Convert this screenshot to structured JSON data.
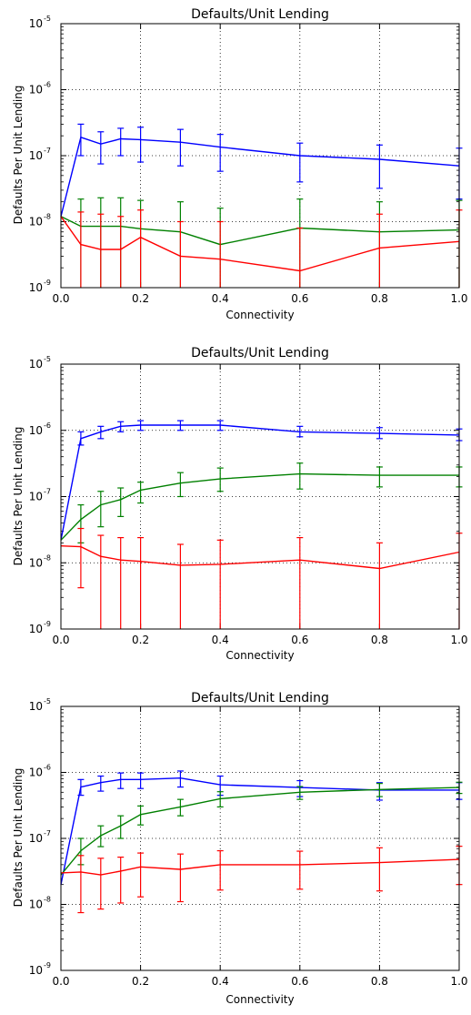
{
  "chart_data": [
    {
      "type": "line",
      "title": "Defaults/Unit Lending",
      "xlabel": "Connectivity",
      "ylabel": "Defaults Per Unit Lending",
      "yscale": "log",
      "xlim": [
        0.0,
        1.0
      ],
      "ylim": [
        1e-09,
        1e-05
      ],
      "grid": true,
      "x": [
        0.0,
        0.05,
        0.1,
        0.15,
        0.2,
        0.3,
        0.4,
        0.6,
        0.8,
        1.0
      ],
      "xticks": [
        "0.0",
        "0.2",
        "0.4",
        "0.6",
        "0.8",
        "1.0"
      ],
      "yticks": [
        "-9",
        "-8",
        "-7",
        "-6",
        "-5"
      ],
      "series": [
        {
          "color": "#0000ff",
          "values": [
            1.2e-08,
            1.9e-07,
            1.5e-07,
            1.8e-07,
            1.75e-07,
            1.6e-07,
            1.35e-07,
            1e-07,
            8.8e-08,
            7e-08
          ],
          "err_low": [
            1.2e-08,
            1e-07,
            7.5e-08,
            1e-07,
            8e-08,
            7e-08,
            5.8e-08,
            4e-08,
            3.2e-08,
            2.2e-08
          ],
          "err_high": [
            1.2e-08,
            3e-07,
            2.3e-07,
            2.6e-07,
            2.7e-07,
            2.5e-07,
            2.1e-07,
            1.55e-07,
            1.45e-07,
            1.3e-07
          ]
        },
        {
          "color": "#008000",
          "values": [
            1.2e-08,
            8.5e-09,
            8.5e-09,
            8.5e-09,
            7.8e-09,
            7e-09,
            4.5e-09,
            8e-09,
            7e-09,
            7.5e-09
          ],
          "err_low": [
            1.2e-08,
            1e-09,
            1e-09,
            1e-09,
            1e-09,
            1e-09,
            1e-09,
            1e-09,
            1e-09,
            1e-09
          ],
          "err_high": [
            1.2e-08,
            2.2e-08,
            2.3e-08,
            2.3e-08,
            2.1e-08,
            2e-08,
            1.6e-08,
            2.2e-08,
            2e-08,
            2.1e-08
          ]
        },
        {
          "color": "#ff0000",
          "values": [
            1.2e-08,
            4.5e-09,
            3.8e-09,
            3.8e-09,
            5.8e-09,
            3e-09,
            2.7e-09,
            1.8e-09,
            4e-09,
            5e-09
          ],
          "err_low": [
            1.2e-08,
            1e-09,
            1e-09,
            1e-09,
            1e-09,
            1e-09,
            1e-09,
            1e-09,
            1e-09,
            1e-09
          ],
          "err_high": [
            1.2e-08,
            1.4e-08,
            1.3e-08,
            1.2e-08,
            1.5e-08,
            1e-08,
            1e-08,
            8e-09,
            1.3e-08,
            1.5e-08
          ]
        }
      ]
    },
    {
      "type": "line",
      "title": "Defaults/Unit Lending",
      "xlabel": "Connectivity",
      "ylabel": "Defaults Per Unit Lending",
      "yscale": "log",
      "xlim": [
        0.0,
        1.0
      ],
      "ylim": [
        1e-09,
        1e-05
      ],
      "grid": true,
      "x": [
        0.0,
        0.05,
        0.1,
        0.15,
        0.2,
        0.3,
        0.4,
        0.6,
        0.8,
        1.0
      ],
      "xticks": [
        "0.0",
        "0.2",
        "0.4",
        "0.6",
        "0.8",
        "1.0"
      ],
      "yticks": [
        "-9",
        "-8",
        "-7",
        "-6",
        "-5"
      ],
      "series": [
        {
          "color": "#0000ff",
          "values": [
            2.2e-08,
            7.5e-07,
            9.5e-07,
            1.15e-06,
            1.2e-06,
            1.2e-06,
            1.2e-06,
            9.5e-07,
            9e-07,
            8.5e-07
          ],
          "err_low": [
            2.2e-08,
            6e-07,
            7.5e-07,
            9.5e-07,
            1e-06,
            1e-06,
            1e-06,
            8e-07,
            7.5e-07,
            7e-07
          ],
          "err_high": [
            2.2e-08,
            9.5e-07,
            1.15e-06,
            1.35e-06,
            1.4e-06,
            1.4e-06,
            1.4e-06,
            1.15e-06,
            1.1e-06,
            1.05e-06
          ]
        },
        {
          "color": "#008000",
          "values": [
            2.2e-08,
            4.5e-08,
            7.5e-08,
            9e-08,
            1.25e-07,
            1.6e-07,
            1.85e-07,
            2.2e-07,
            2.1e-07,
            2.1e-07
          ],
          "err_low": [
            2.2e-08,
            2e-08,
            3.5e-08,
            5e-08,
            8e-08,
            1e-07,
            1.2e-07,
            1.3e-07,
            1.4e-07,
            1.4e-07
          ],
          "err_high": [
            2.2e-08,
            7.5e-08,
            1.2e-07,
            1.35e-07,
            1.65e-07,
            2.3e-07,
            2.7e-07,
            3.2e-07,
            2.8e-07,
            2.8e-07
          ]
        },
        {
          "color": "#ff0000",
          "values": [
            1.8e-08,
            1.75e-08,
            1.25e-08,
            1.1e-08,
            1.05e-08,
            9.2e-09,
            9.5e-09,
            1.1e-08,
            8.2e-09,
            1.45e-08
          ],
          "err_low": [
            1.8e-08,
            4.2e-09,
            1e-09,
            1e-09,
            1e-09,
            1e-09,
            1e-09,
            1e-09,
            1e-09,
            1e-09
          ],
          "err_high": [
            1.8e-08,
            3.3e-08,
            2.6e-08,
            2.4e-08,
            2.4e-08,
            1.9e-08,
            2.2e-08,
            2.4e-08,
            2e-08,
            2.8e-08
          ]
        }
      ]
    },
    {
      "type": "line",
      "title": "Defaults/Unit Lending",
      "xlabel": "Connectivity",
      "ylabel": "Defaults Per Unit Lending",
      "yscale": "log",
      "xlim": [
        0.0,
        1.0
      ],
      "ylim": [
        1e-09,
        1e-05
      ],
      "grid": true,
      "x": [
        0.0,
        0.05,
        0.1,
        0.15,
        0.2,
        0.3,
        0.4,
        0.6,
        0.8,
        1.0
      ],
      "xticks": [
        "0.0",
        "0.2",
        "0.4",
        "0.6",
        "0.8",
        "1.0"
      ],
      "yticks": [
        "-9",
        "-8",
        "-7",
        "-6",
        "-5"
      ],
      "series": [
        {
          "color": "#0000ff",
          "values": [
            2e-08,
            6e-07,
            7e-07,
            7.8e-07,
            7.8e-07,
            8.2e-07,
            6.5e-07,
            5.9e-07,
            5.4e-07,
            5.4e-07
          ],
          "err_low": [
            2e-08,
            4.5e-07,
            5.2e-07,
            5.7e-07,
            5.7e-07,
            6e-07,
            4.5e-07,
            4.3e-07,
            3.8e-07,
            3.9e-07
          ],
          "err_high": [
            2e-08,
            7.8e-07,
            8.8e-07,
            9.8e-07,
            9.8e-07,
            1.05e-06,
            8.8e-07,
            7.5e-07,
            7e-07,
            7e-07
          ]
        },
        {
          "color": "#008000",
          "values": [
            2.8e-08,
            6.5e-08,
            1.1e-07,
            1.55e-07,
            2.3e-07,
            3e-07,
            4e-07,
            5e-07,
            5.5e-07,
            5.9e-07
          ],
          "err_low": [
            2.8e-08,
            4e-08,
            7.5e-08,
            1e-07,
            1.6e-07,
            2.2e-07,
            3e-07,
            3.9e-07,
            4.3e-07,
            4.8e-07
          ],
          "err_high": [
            2.8e-08,
            1e-07,
            1.55e-07,
            2.2e-07,
            3.1e-07,
            3.9e-07,
            5.1e-07,
            6.1e-07,
            6.8e-07,
            7.1e-07
          ]
        },
        {
          "color": "#ff0000",
          "values": [
            3e-08,
            3.1e-08,
            2.8e-08,
            3.2e-08,
            3.7e-08,
            3.4e-08,
            4e-08,
            4e-08,
            4.3e-08,
            4.8e-08
          ],
          "err_low": [
            3e-08,
            7.5e-09,
            8.5e-09,
            1.05e-08,
            1.3e-08,
            1.1e-08,
            1.65e-08,
            1.7e-08,
            1.6e-08,
            2e-08
          ],
          "err_high": [
            3e-08,
            5.5e-08,
            5e-08,
            5.2e-08,
            6e-08,
            5.8e-08,
            6.5e-08,
            6.4e-08,
            7.2e-08,
            7.6e-08
          ]
        }
      ]
    }
  ]
}
